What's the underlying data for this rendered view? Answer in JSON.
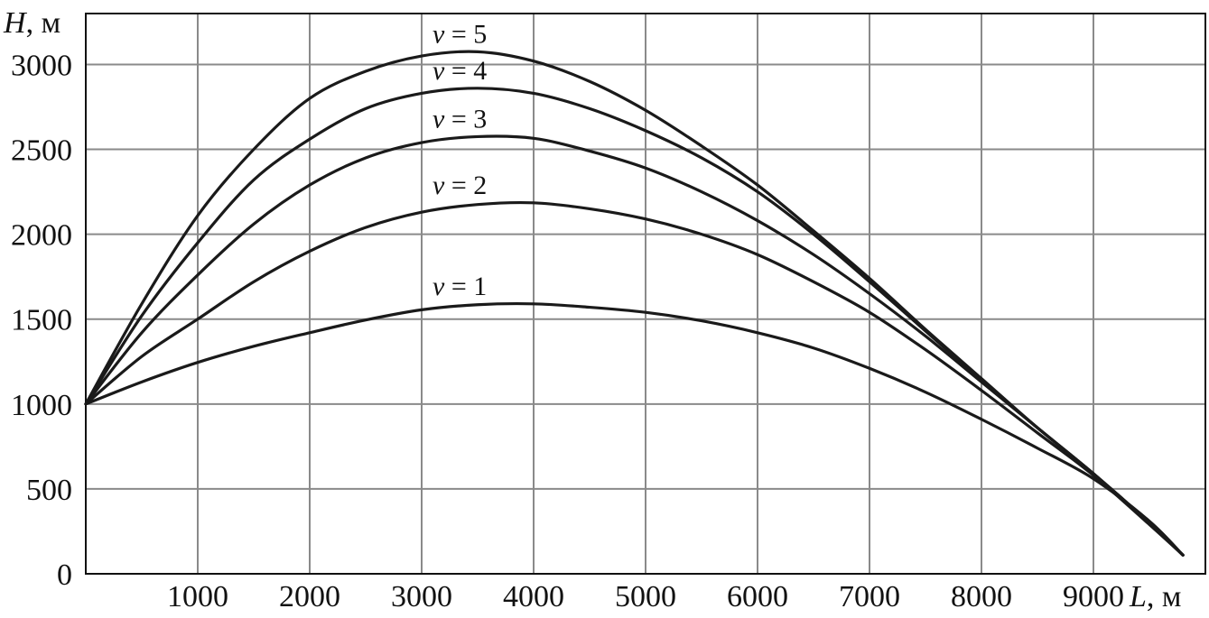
{
  "chart_data": {
    "type": "line",
    "ylabel": "H, м",
    "ylabel_var": "H",
    "ylabel_unit": ", м",
    "xlabel": "L, м",
    "xlabel_var": "L",
    "xlabel_unit": ", м",
    "xlim": [
      0,
      10000
    ],
    "ylim": [
      0,
      3300
    ],
    "x_ticks": [
      1000,
      2000,
      3000,
      4000,
      5000,
      6000,
      7000,
      8000,
      9000
    ],
    "y_ticks": [
      0,
      500,
      1000,
      1500,
      2000,
      2500,
      3000
    ],
    "grid": true,
    "legend": "inline labels above curves",
    "x": [
      0,
      500,
      1000,
      1500,
      2000,
      2500,
      3000,
      3500,
      4000,
      4500,
      5000,
      5500,
      6000,
      6500,
      7000,
      7500,
      8000,
      8500,
      9000,
      9500,
      9800
    ],
    "series": [
      {
        "name": "v = 1",
        "name_var": "v",
        "name_rest": " = 1",
        "values": [
          1000,
          1130,
          1245,
          1340,
          1420,
          1495,
          1555,
          1585,
          1590,
          1570,
          1540,
          1490,
          1420,
          1330,
          1210,
          1070,
          910,
          740,
          560,
          310,
          110
        ]
      },
      {
        "name": "v = 2",
        "name_var": "v",
        "name_rest": " = 2",
        "values": [
          1000,
          1280,
          1500,
          1720,
          1900,
          2040,
          2130,
          2175,
          2185,
          2150,
          2090,
          2000,
          1880,
          1720,
          1540,
          1320,
          1080,
          830,
          580,
          290,
          110
        ]
      },
      {
        "name": "v = 3",
        "name_var": "v",
        "name_rest": " = 3",
        "values": [
          1000,
          1420,
          1760,
          2060,
          2290,
          2450,
          2540,
          2575,
          2565,
          2490,
          2390,
          2250,
          2080,
          1880,
          1650,
          1400,
          1130,
          860,
          590,
          300,
          110
        ]
      },
      {
        "name": "v = 4",
        "name_var": "v",
        "name_rest": " = 4",
        "values": [
          1000,
          1520,
          1950,
          2320,
          2560,
          2740,
          2830,
          2860,
          2830,
          2740,
          2610,
          2450,
          2250,
          2000,
          1720,
          1430,
          1140,
          860,
          590,
          300,
          110
        ]
      },
      {
        "name": "v = 5",
        "name_var": "v",
        "name_rest": " = 5",
        "values": [
          1000,
          1590,
          2110,
          2500,
          2800,
          2960,
          3050,
          3075,
          3020,
          2900,
          2730,
          2520,
          2290,
          2020,
          1740,
          1440,
          1150,
          860,
          590,
          300,
          110
        ]
      }
    ]
  }
}
